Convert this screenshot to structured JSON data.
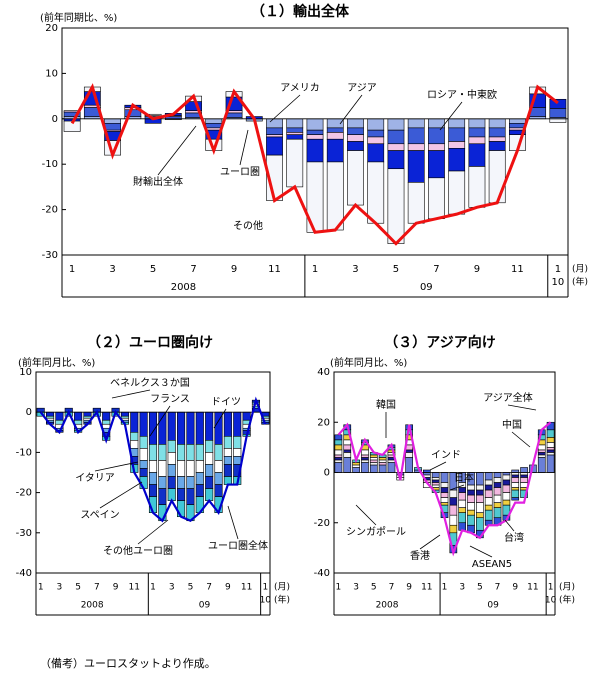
{
  "chart_data": [
    {
      "type": "bar",
      "title": "（１）輸出全体",
      "y_label": "(前年同期比、%)",
      "x_label": "(月)",
      "x2_label": "(年)",
      "categories": [
        "1",
        null,
        "3",
        null,
        "5",
        null,
        "7",
        null,
        "9",
        null,
        "11",
        null,
        "1",
        null,
        "3",
        null,
        "5",
        null,
        "7",
        null,
        "9",
        null,
        "11",
        null,
        "1"
      ],
      "years": [
        "2008",
        "09",
        "10"
      ],
      "ylim": [
        -30,
        20
      ],
      "yticks": [
        20,
        10,
        0,
        -10,
        -20,
        -30
      ],
      "series": [
        {
          "name": "アメリカ",
          "color": "#9fb3e6",
          "values": [
            0.5,
            0.5,
            -1,
            0.5,
            0,
            0,
            0.3,
            -1,
            0.3,
            -0.5,
            -2,
            -2,
            -2.5,
            -2,
            -2,
            -2.5,
            -2.5,
            -2,
            -2,
            -2,
            -2,
            -2,
            -1,
            0.5,
            0.3
          ]
        },
        {
          "name": "アジア",
          "color": "#3b5bd6",
          "values": [
            1,
            2,
            -1.5,
            1.5,
            0.5,
            0.5,
            1,
            -1,
            1,
            0,
            -1.5,
            -1,
            -1,
            -1,
            -1.5,
            -1.5,
            -3,
            -3.5,
            -3.5,
            -3,
            -2,
            -2,
            -1,
            2,
            2
          ]
        },
        {
          "name": "ロシア・中東欧",
          "color": "#f2c6e6",
          "values": [
            0.3,
            0.5,
            -0.3,
            0.5,
            0.2,
            0.2,
            0.5,
            -0.5,
            0.5,
            0,
            -0.5,
            -0.5,
            -1,
            -1.5,
            -1.5,
            -1.5,
            -1.5,
            -1.5,
            -1.5,
            -1.5,
            -1.5,
            -1,
            -0.5,
            0,
            0
          ]
        },
        {
          "name": "ユーロ圏",
          "color": "#0a23d6",
          "values": [
            -0.5,
            3,
            -2,
            0.5,
            -1,
            0.5,
            2,
            -2,
            3,
            0.5,
            -4,
            -1,
            -5,
            -5,
            -2,
            -4,
            -4,
            -7,
            -6,
            -5,
            -5,
            -2,
            -1,
            3,
            2
          ]
        },
        {
          "name": "その他",
          "color": "#f4f6fb",
          "values": [
            -2.3,
            1,
            -3.2,
            0,
            0.3,
            -0.2,
            1.2,
            -2.5,
            1.2,
            0,
            -10,
            -10.5,
            -15.5,
            -15,
            -12,
            -13.5,
            -16.5,
            -9,
            -9,
            -9.5,
            -9,
            -11.5,
            -3.5,
            1.5,
            -0.8
          ]
        }
      ],
      "line": {
        "name": "財輸出全体",
        "color": "#ee1111",
        "values": [
          -1,
          7,
          -8,
          3,
          0,
          1,
          5,
          -7,
          6,
          0,
          -18,
          -15,
          -25,
          -24.5,
          -19,
          -23,
          -27.5,
          -23,
          -22,
          -21,
          -19.5,
          -18.5,
          -7,
          7,
          3.5
        ]
      }
    },
    {
      "type": "bar",
      "title": "（２）ユーロ圏向け",
      "y_label": "(前年同月比、%)",
      "x_label": "(月)",
      "x2_label": "(年)",
      "categories": [
        "1",
        null,
        "3",
        null,
        "5",
        null,
        "7",
        null,
        "9",
        null,
        "11",
        null,
        "1",
        null,
        "3",
        null,
        "5",
        null,
        "7",
        null,
        "9",
        null,
        "11",
        null,
        "1"
      ],
      "years": [
        "2008",
        "09",
        "10"
      ],
      "ylim": [
        -40,
        10
      ],
      "yticks": [
        10,
        0,
        -10,
        -20,
        -30,
        -40
      ],
      "series": [
        {
          "name": "ドイツ",
          "color": "#0a23d6",
          "values": [
            0,
            -1,
            -2,
            0,
            -2,
            -1,
            0,
            -2,
            0,
            -1,
            -5,
            -6,
            -8,
            -8,
            -7,
            -8,
            -8,
            -8,
            -7,
            -8,
            -6,
            -6,
            -2,
            1,
            -1
          ]
        },
        {
          "name": "フランス",
          "color": "#7fe0e6",
          "values": [
            0,
            -0.5,
            -1,
            0,
            -1,
            -0.5,
            0,
            -1,
            0,
            -0.5,
            -2,
            -3,
            -4,
            -4,
            -3,
            -4,
            -4,
            -4,
            -3,
            -4,
            -3,
            -3,
            -1,
            0.5,
            -0.5
          ]
        },
        {
          "name": "イタリア",
          "color": "#ffffff",
          "values": [
            0,
            -0.5,
            -1,
            0,
            -1,
            -0.5,
            0,
            -1,
            0,
            -0.5,
            -2,
            -3,
            -3,
            -4,
            -3,
            -4,
            -4,
            -3,
            -3,
            -3,
            -2,
            -2,
            -1,
            0.5,
            -0.5
          ]
        },
        {
          "name": "スペイン",
          "color": "#6aa8e8",
          "values": [
            0,
            -0.5,
            -0.5,
            0,
            -0.5,
            -0.5,
            0,
            -1,
            0,
            -0.5,
            -2,
            -2,
            -3,
            -3,
            -3,
            -3,
            -3,
            -3,
            -3,
            -3,
            -2,
            -2,
            -0.5,
            0.5,
            -0.5
          ]
        },
        {
          "name": "ベネルクス３か国",
          "color": "#1030c8",
          "values": [
            1,
            -0.5,
            -0.5,
            1,
            0,
            -0.5,
            1,
            -1,
            1,
            0,
            -2,
            -2,
            -3,
            -4,
            -3,
            -3,
            -4,
            -3,
            -3,
            -3,
            -3,
            -3,
            -1,
            0.5,
            -0.5
          ]
        },
        {
          "name": "その他ユーロ圏",
          "color": "#40c8d8",
          "values": [
            -1,
            0,
            0,
            -1,
            -0.5,
            0,
            -1,
            -1,
            -1,
            -0.5,
            -2,
            -3,
            -4,
            -4,
            -3,
            -4,
            -4,
            -4,
            -3,
            -4,
            -2,
            -2,
            -0.5,
            0,
            0
          ]
        }
      ],
      "line": {
        "name": "ユーロ圏全体",
        "color": "#0000cc",
        "values": [
          0,
          -3,
          -5,
          0,
          -5,
          -3,
          0,
          -7,
          0,
          -3,
          -15,
          -19,
          -25,
          -27,
          -22,
          -26,
          -27,
          -25,
          -22,
          -25,
          -18,
          -18,
          -6,
          3,
          -3
        ]
      }
    },
    {
      "type": "bar",
      "title": "（３）アジア向け",
      "y_label": "(前年同月比、%)",
      "x_label": "(月)",
      "x2_label": "(年)",
      "categories": [
        "1",
        null,
        "3",
        null,
        "5",
        null,
        "7",
        null,
        "9",
        null,
        "11",
        null,
        "1",
        null,
        "3",
        null,
        "5",
        null,
        "7",
        null,
        "9",
        null,
        "11",
        null,
        "1"
      ],
      "years": [
        "2008",
        "09",
        "10"
      ],
      "ylim": [
        -40,
        40
      ],
      "yticks": [
        40,
        20,
        0,
        -20,
        -40
      ],
      "series": [
        {
          "name": "中国",
          "color": "#6a7fd8",
          "values": [
            4,
            6,
            2,
            4,
            3,
            3,
            4,
            -1,
            6,
            1,
            -1,
            -2,
            -4,
            -7,
            -4,
            -5,
            -5,
            -3,
            -2,
            -1,
            1,
            2,
            3,
            6,
            7
          ]
        },
        {
          "name": "韓国",
          "color": "#f4f4f4",
          "values": [
            1,
            2,
            0,
            1,
            1,
            0,
            1,
            -1,
            2,
            0,
            -1,
            -1,
            -2,
            -3,
            -2,
            -2,
            -2,
            -2,
            -2,
            -2,
            -1,
            -1,
            0,
            1,
            1
          ]
        },
        {
          "name": "台湾",
          "color": "#1a1a9a",
          "values": [
            1,
            1,
            0,
            1,
            0,
            0,
            1,
            0,
            1,
            0,
            -1,
            -1,
            -2,
            -3,
            -2,
            -2,
            -2,
            -2,
            -2,
            -2,
            -1,
            -1,
            0,
            1,
            1
          ]
        },
        {
          "name": "香港",
          "color": "#f2b8e0",
          "values": [
            1,
            2,
            0,
            1,
            1,
            1,
            1,
            0,
            2,
            0,
            -1,
            -1,
            -2,
            -4,
            -3,
            -3,
            -3,
            -3,
            -3,
            -3,
            -2,
            -2,
            0,
            1,
            1
          ]
        },
        {
          "name": "シンガポール",
          "color": "#ffffff",
          "values": [
            2,
            2,
            1,
            2,
            1,
            1,
            1,
            -1,
            2,
            0,
            -2,
            -1,
            -2,
            -4,
            -3,
            -3,
            -4,
            -3,
            -3,
            -3,
            -2,
            -2,
            0,
            2,
            2
          ]
        },
        {
          "name": "インド",
          "color": "#f0d040",
          "values": [
            2,
            2,
            1,
            2,
            1,
            1,
            1,
            0,
            2,
            0,
            0,
            -1,
            -1,
            -3,
            -2,
            -2,
            -2,
            -2,
            -2,
            -2,
            -1,
            -1,
            0,
            2,
            2
          ]
        },
        {
          "name": "ASEAN5",
          "color": "#50c8d0",
          "values": [
            2,
            2,
            1,
            1,
            1,
            1,
            1,
            0,
            2,
            1,
            0,
            -1,
            -3,
            -5,
            -4,
            -4,
            -5,
            -4,
            -4,
            -4,
            -3,
            -3,
            0,
            2,
            3
          ]
        },
        {
          "name": "日本",
          "color": "#3050d8",
          "values": [
            2,
            2,
            0,
            1,
            0,
            0,
            1,
            0,
            2,
            0,
            1,
            0,
            -2,
            -3,
            -3,
            -3,
            -3,
            -2,
            -3,
            -2,
            -1,
            0,
            0,
            2,
            3
          ]
        }
      ],
      "line": {
        "name": "アジア全体",
        "color": "#e020e0",
        "values": [
          15,
          19,
          5,
          13,
          8,
          7,
          11,
          -3,
          19,
          2,
          -4,
          -8,
          -18,
          -32,
          -23,
          -24,
          -26,
          -21,
          -21,
          -19,
          -12,
          -12,
          3,
          17,
          20
        ]
      }
    }
  ],
  "note": "（備考）ユーロスタットより作成。"
}
